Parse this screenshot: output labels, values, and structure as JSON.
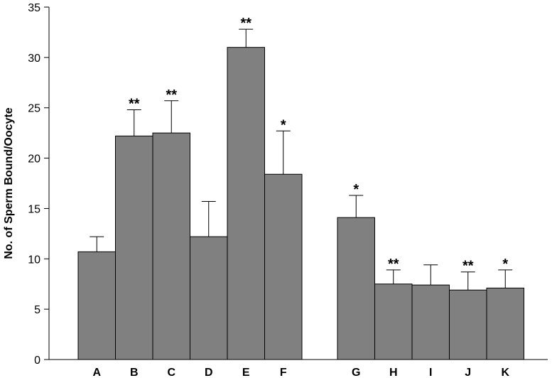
{
  "chart_data": {
    "type": "bar",
    "title": "",
    "xlabel": "",
    "ylabel": "No. of Sperm Bound/Oocyte",
    "ylim": [
      0,
      35
    ],
    "yticks": [
      0,
      5,
      10,
      15,
      20,
      25,
      30,
      35
    ],
    "grid": false,
    "legend": "none",
    "bar_color": "#808080",
    "categories": [
      "A",
      "B",
      "C",
      "D",
      "E",
      "F",
      "G",
      "H",
      "I",
      "J",
      "K"
    ],
    "groups": [
      [
        "A",
        "B",
        "C",
        "D",
        "E",
        "F"
      ],
      [
        "G",
        "H",
        "I",
        "J",
        "K"
      ]
    ],
    "values": [
      10.7,
      22.2,
      22.5,
      12.2,
      31.0,
      18.4,
      14.1,
      7.5,
      7.4,
      6.9,
      7.1
    ],
    "errors": [
      1.5,
      2.6,
      3.2,
      3.5,
      1.8,
      4.3,
      2.2,
      1.4,
      2.0,
      1.8,
      1.8
    ],
    "significance": [
      "",
      "**",
      "**",
      "",
      "**",
      "*",
      "*",
      "**",
      "",
      "**",
      "*"
    ]
  }
}
